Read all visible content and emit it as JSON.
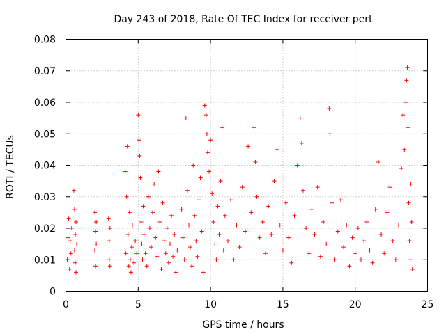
{
  "chart_data": {
    "type": "scatter",
    "title": "Day 243 of 2018, Rate Of TEC Index for receiver pert",
    "xlabel": "GPS time / hours",
    "ylabel": "ROTI / TECUs",
    "xlim": [
      0,
      25
    ],
    "ylim": [
      0,
      0.08
    ],
    "xticks": [
      "0",
      "5",
      "10",
      "15",
      "20",
      "25"
    ],
    "yticks": [
      "0",
      "0.01",
      "0.02",
      "0.03",
      "0.04",
      "0.05",
      "0.06",
      "0.07",
      "0.08"
    ],
    "grid": true,
    "legend": "none",
    "marker": "plus",
    "color": "#ff0000",
    "notes": "ROTI samples per satellite pass, roughly every few minutes; dense cloud between 4 h and 24 h with typical values 0.005-0.03 and peaks near 0.07",
    "series": [
      {
        "values": [
          [
            0.1,
            0.01
          ],
          [
            0.15,
            0.017
          ],
          [
            0.2,
            0.023
          ],
          [
            0.25,
            0.007
          ],
          [
            0.3,
            0.016
          ],
          [
            0.35,
            0.012
          ],
          [
            0.4,
            0.02
          ],
          [
            0.55,
            0.032
          ],
          [
            0.6,
            0.026
          ],
          [
            0.6,
            0.013
          ],
          [
            0.65,
            0.018
          ],
          [
            0.65,
            0.009
          ],
          [
            0.7,
            0.022
          ],
          [
            0.7,
            0.006
          ],
          [
            0.75,
            0.015
          ],
          [
            2.0,
            0.025
          ],
          [
            2.0,
            0.013
          ],
          [
            2.05,
            0.019
          ],
          [
            2.05,
            0.008
          ],
          [
            2.1,
            0.022
          ],
          [
            2.1,
            0.015
          ],
          [
            2.95,
            0.023
          ],
          [
            3.0,
            0.01
          ],
          [
            3.0,
            0.016
          ],
          [
            3.05,
            0.008
          ],
          [
            3.05,
            0.02
          ],
          [
            4.1,
            0.038
          ],
          [
            4.15,
            0.012
          ],
          [
            4.2,
            0.03
          ],
          [
            4.25,
            0.046
          ],
          [
            4.3,
            0.018
          ],
          [
            4.35,
            0.008
          ],
          [
            4.4,
            0.025
          ],
          [
            4.45,
            0.01
          ],
          [
            4.5,
            0.006
          ],
          [
            4.55,
            0.014
          ],
          [
            4.6,
            0.021
          ],
          [
            4.7,
            0.009
          ],
          [
            4.8,
            0.016
          ],
          [
            4.9,
            0.012
          ],
          [
            5.0,
            0.056
          ],
          [
            5.05,
            0.048
          ],
          [
            5.1,
            0.043
          ],
          [
            5.15,
            0.036
          ],
          [
            5.2,
            0.022
          ],
          [
            5.25,
            0.015
          ],
          [
            5.3,
            0.01
          ],
          [
            5.35,
            0.027
          ],
          [
            5.4,
            0.018
          ],
          [
            5.5,
            0.012
          ],
          [
            5.6,
            0.008
          ],
          [
            5.7,
            0.03
          ],
          [
            5.8,
            0.02
          ],
          [
            5.9,
            0.014
          ],
          [
            6.0,
            0.025
          ],
          [
            6.1,
            0.034
          ],
          [
            6.2,
            0.017
          ],
          [
            6.3,
            0.011
          ],
          [
            6.4,
            0.038
          ],
          [
            6.5,
            0.022
          ],
          [
            6.6,
            0.007
          ],
          [
            6.7,
            0.028
          ],
          [
            6.8,
            0.016
          ],
          [
            6.9,
            0.012
          ],
          [
            7.0,
            0.02
          ],
          [
            7.1,
            0.009
          ],
          [
            7.2,
            0.015
          ],
          [
            7.3,
            0.024
          ],
          [
            7.4,
            0.011
          ],
          [
            7.5,
            0.018
          ],
          [
            7.6,
            0.006
          ],
          [
            7.7,
            0.013
          ],
          [
            8.0,
            0.026
          ],
          [
            8.1,
            0.017
          ],
          [
            8.2,
            0.01
          ],
          [
            8.3,
            0.055
          ],
          [
            8.4,
            0.032
          ],
          [
            8.5,
            0.021
          ],
          [
            8.6,
            0.014
          ],
          [
            8.7,
            0.008
          ],
          [
            8.8,
            0.04
          ],
          [
            8.9,
            0.024
          ],
          [
            9.0,
            0.016
          ],
          [
            9.1,
            0.011
          ],
          [
            9.2,
            0.029
          ],
          [
            9.3,
            0.036
          ],
          [
            9.4,
            0.019
          ],
          [
            9.5,
            0.006
          ],
          [
            9.6,
            0.059
          ],
          [
            9.7,
            0.056
          ],
          [
            9.75,
            0.05
          ],
          [
            9.8,
            0.044
          ],
          [
            9.9,
            0.038
          ],
          [
            10.0,
            0.048
          ],
          [
            10.1,
            0.031
          ],
          [
            10.2,
            0.022
          ],
          [
            10.3,
            0.015
          ],
          [
            10.4,
            0.01
          ],
          [
            10.5,
            0.027
          ],
          [
            10.6,
            0.018
          ],
          [
            10.7,
            0.035
          ],
          [
            10.8,
            0.052
          ],
          [
            10.9,
            0.013
          ],
          [
            11.0,
            0.024
          ],
          [
            11.2,
            0.016
          ],
          [
            11.4,
            0.029
          ],
          [
            11.6,
            0.01
          ],
          [
            11.8,
            0.021
          ],
          [
            12.0,
            0.014
          ],
          [
            12.2,
            0.033
          ],
          [
            12.4,
            0.019
          ],
          [
            12.6,
            0.046
          ],
          [
            12.8,
            0.025
          ],
          [
            13.0,
            0.052
          ],
          [
            13.1,
            0.041
          ],
          [
            13.2,
            0.03
          ],
          [
            13.4,
            0.017
          ],
          [
            13.6,
            0.022
          ],
          [
            13.8,
            0.012
          ],
          [
            14.0,
            0.027
          ],
          [
            14.2,
            0.018
          ],
          [
            14.4,
            0.035
          ],
          [
            14.6,
            0.045
          ],
          [
            14.8,
            0.021
          ],
          [
            15.0,
            0.013
          ],
          [
            15.2,
            0.028
          ],
          [
            15.4,
            0.017
          ],
          [
            15.6,
            0.009
          ],
          [
            15.8,
            0.024
          ],
          [
            16.0,
            0.04
          ],
          [
            16.2,
            0.055
          ],
          [
            16.3,
            0.047
          ],
          [
            16.4,
            0.032
          ],
          [
            16.6,
            0.02
          ],
          [
            16.8,
            0.012
          ],
          [
            17.0,
            0.026
          ],
          [
            17.2,
            0.018
          ],
          [
            17.4,
            0.033
          ],
          [
            17.6,
            0.011
          ],
          [
            17.8,
            0.022
          ],
          [
            18.0,
            0.015
          ],
          [
            18.2,
            0.058
          ],
          [
            18.25,
            0.05
          ],
          [
            18.4,
            0.028
          ],
          [
            18.6,
            0.01
          ],
          [
            18.8,
            0.019
          ],
          [
            19.0,
            0.029
          ],
          [
            19.2,
            0.014
          ],
          [
            19.4,
            0.021
          ],
          [
            19.6,
            0.008
          ],
          [
            19.8,
            0.017
          ],
          [
            20.0,
            0.012
          ],
          [
            20.2,
            0.02
          ],
          [
            20.4,
            0.01
          ],
          [
            20.6,
            0.016
          ],
          [
            20.8,
            0.022
          ],
          [
            21.0,
            0.013
          ],
          [
            21.2,
            0.009
          ],
          [
            21.4,
            0.026
          ],
          [
            21.6,
            0.041
          ],
          [
            21.8,
            0.018
          ],
          [
            22.0,
            0.012
          ],
          [
            22.2,
            0.025
          ],
          [
            22.4,
            0.033
          ],
          [
            22.6,
            0.016
          ],
          [
            22.8,
            0.01
          ],
          [
            23.0,
            0.021
          ],
          [
            23.2,
            0.039
          ],
          [
            23.3,
            0.056
          ],
          [
            23.4,
            0.045
          ],
          [
            23.5,
            0.06
          ],
          [
            23.55,
            0.067
          ],
          [
            23.6,
            0.071
          ],
          [
            23.65,
            0.052
          ],
          [
            23.7,
            0.028
          ],
          [
            23.75,
            0.016
          ],
          [
            23.8,
            0.01
          ],
          [
            23.85,
            0.034
          ],
          [
            23.9,
            0.022
          ],
          [
            23.95,
            0.007
          ]
        ]
      }
    ]
  }
}
